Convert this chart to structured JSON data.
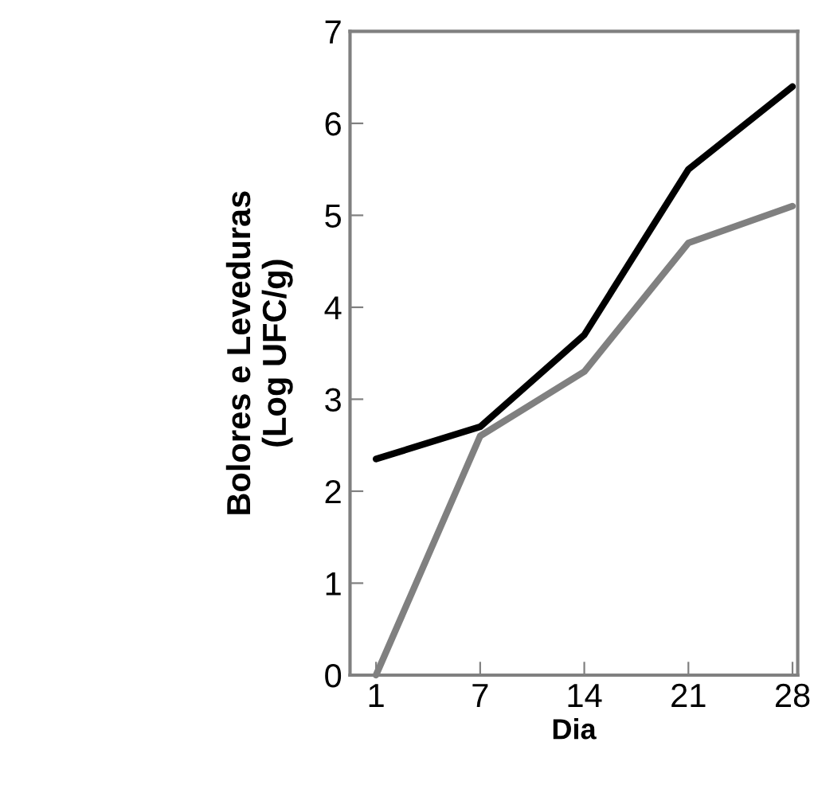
{
  "chart_data": {
    "type": "line",
    "xlabel": "Dia",
    "ylabel": "Bolores e Leveduras\n(Log UFC/g)",
    "categories": [
      "1",
      "7",
      "14",
      "21",
      "28"
    ],
    "series": [
      {
        "color": "#000000",
        "values": [
          2.35,
          2.7,
          3.7,
          5.5,
          6.4
        ]
      },
      {
        "color": "#808080",
        "values": [
          0,
          2.6,
          3.3,
          4.7,
          5.1
        ]
      }
    ],
    "ylim": [
      0,
      7
    ],
    "yticks": [
      0,
      1,
      2,
      3,
      4,
      5,
      6,
      7
    ],
    "grid": false,
    "legend": false,
    "marker": "none",
    "line_style": "solid"
  }
}
